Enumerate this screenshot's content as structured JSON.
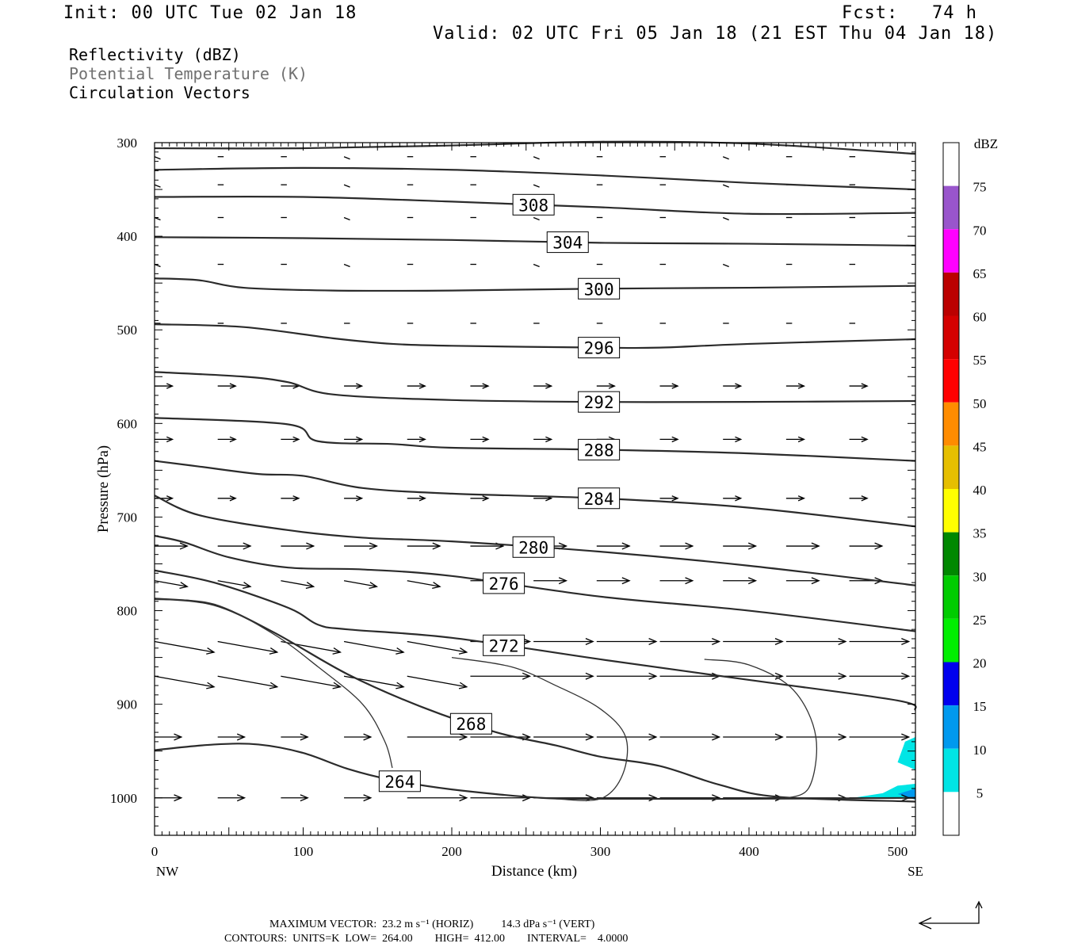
{
  "header": {
    "init": "Init: 00 UTC Tue 02 Jan 18",
    "fcst": "Fcst:   74 h",
    "valid": "Valid: 02 UTC Fri 05 Jan 18 (21 EST Thu 04 Jan 18)",
    "legend_lines": [
      "Reflectivity (dBZ)",
      "Potential Temperature (K)",
      "Circulation Vectors"
    ]
  },
  "footer": {
    "max_vector": "MAXIMUM VECTOR:  23.2 m s⁻¹ (HORIZ)          14.3 dPa s⁻¹ (VERT)",
    "contours": "CONTOURS:  UNITS=K  LOW=  264.00        HIGH=  412.00        INTERVAL=    4.0000"
  },
  "colors": {
    "contour": "#2b2b2b",
    "legend_gray": "#707070"
  },
  "chart_data": {
    "type": "contour",
    "xlabel": "Distance (km)",
    "ylabel": "Pressure (hPa)",
    "xlim": [
      0,
      512
    ],
    "ylim": [
      1040,
      300
    ],
    "x_ticks": [
      "0",
      "100",
      "200",
      "300",
      "400",
      "500"
    ],
    "x_tick_values": [
      0,
      100,
      200,
      300,
      400,
      500
    ],
    "y_ticks": [
      "300",
      "400",
      "500",
      "600",
      "700",
      "800",
      "900",
      "1000"
    ],
    "y_tick_values": [
      300,
      400,
      500,
      600,
      700,
      800,
      900,
      1000
    ],
    "x_end_labels": {
      "left": "NW",
      "right": "SE"
    },
    "theta_contours": [
      {
        "label": "",
        "x": [
          0,
          100,
          200,
          300,
          400,
          512
        ],
        "p": [
          306,
          306,
          303,
          299,
          301,
          312
        ]
      },
      {
        "label": "",
        "x": [
          0,
          100,
          200,
          300,
          400,
          512
        ],
        "p": [
          329,
          327,
          329,
          335,
          343,
          350
        ]
      },
      {
        "label": "308",
        "x": [
          0,
          100,
          200,
          300,
          400,
          512
        ],
        "p": [
          358,
          358,
          363,
          369,
          376,
          375
        ]
      },
      {
        "label": "304",
        "x": [
          0,
          100,
          200,
          300,
          400,
          512
        ],
        "p": [
          401,
          402,
          404,
          407,
          408,
          410
        ]
      },
      {
        "label": "300",
        "x": [
          0,
          30,
          60,
          120,
          200,
          300,
          400,
          512
        ],
        "p": [
          445,
          447,
          455,
          458,
          458,
          456,
          455,
          453
        ]
      },
      {
        "label": "296",
        "x": [
          0,
          60,
          120,
          160,
          200,
          300,
          340,
          400,
          512
        ],
        "p": [
          494,
          497,
          509,
          515,
          517,
          519,
          519,
          515,
          510
        ]
      },
      {
        "label": "292",
        "x": [
          0,
          60,
          90,
          120,
          200,
          300,
          400,
          512
        ],
        "p": [
          545,
          550,
          556,
          569,
          575,
          577,
          577,
          576
        ]
      },
      {
        "label": "288",
        "x": [
          0,
          90,
          110,
          160,
          200,
          300,
          400,
          512
        ],
        "p": [
          594,
          601,
          619,
          622,
          626,
          628,
          632,
          640
        ]
      },
      {
        "label": "284",
        "x": [
          0,
          30,
          70,
          100,
          140,
          200,
          300,
          400,
          512
        ],
        "p": [
          640,
          646,
          654,
          656,
          669,
          675,
          680,
          690,
          710
        ]
      },
      {
        "label": "280",
        "x": [
          0,
          30,
          90,
          140,
          200,
          300,
          400,
          512
        ],
        "p": [
          677,
          698,
          714,
          722,
          726,
          737,
          752,
          773
        ]
      },
      {
        "label": "276",
        "x": [
          0,
          20,
          50,
          90,
          140,
          200,
          300,
          400,
          512
        ],
        "p": [
          720,
          727,
          743,
          754,
          756,
          763,
          785,
          800,
          822
        ]
      },
      {
        "label": "272",
        "x": [
          0,
          40,
          90,
          110,
          130,
          200,
          300,
          400,
          500,
          512
        ],
        "p": [
          757,
          770,
          797,
          815,
          820,
          829,
          852,
          874,
          896,
          906
        ]
      },
      {
        "label": "268",
        "x": [
          0,
          40,
          80,
          130,
          180,
          230,
          270,
          300,
          340,
          380,
          420,
          512
        ],
        "p": [
          787,
          794,
          823,
          868,
          903,
          930,
          944,
          956,
          966,
          986,
          999,
          1004
        ]
      },
      {
        "label": "264",
        "x": [
          0,
          40,
          70,
          100,
          130,
          160,
          200,
          260,
          300,
          400,
          512
        ],
        "p": [
          949,
          943,
          943,
          952,
          969,
          981,
          991,
          1000,
          1001,
          1001,
          1000
        ]
      }
    ],
    "reflectivity_colorbar": {
      "unit": "dBZ",
      "levels": [
        "5",
        "10",
        "15",
        "20",
        "25",
        "30",
        "35",
        "40",
        "45",
        "50",
        "55",
        "60",
        "65",
        "70",
        "75"
      ],
      "colors": [
        "#ffffff",
        "#00e5e5",
        "#0099ee",
        "#0000ee",
        "#00ee00",
        "#00cc00",
        "#008800",
        "#ffff00",
        "#e6bf00",
        "#ff8c00",
        "#ff0000",
        "#d40000",
        "#bb0000",
        "#ff00ff",
        "#9955cc",
        "#ffffff"
      ]
    },
    "reflectivity_areas": [
      {
        "dbz": "5",
        "x": [
          470,
          490,
          500,
          512,
          512,
          505,
          500,
          512,
          512
        ],
        "p": [
          1000,
          995,
          987,
          985,
          935,
          940,
          962,
          970,
          1000
        ]
      },
      {
        "dbz": "10",
        "x": [
          500,
          512,
          512
        ],
        "p": [
          996,
          990,
          1002
        ]
      }
    ],
    "vector_rows_hpa": [
      315,
      345,
      380,
      430,
      493,
      560,
      617,
      680,
      731,
      768,
      833,
      870,
      935,
      1000
    ],
    "max_vector_ms": 23.2
  }
}
